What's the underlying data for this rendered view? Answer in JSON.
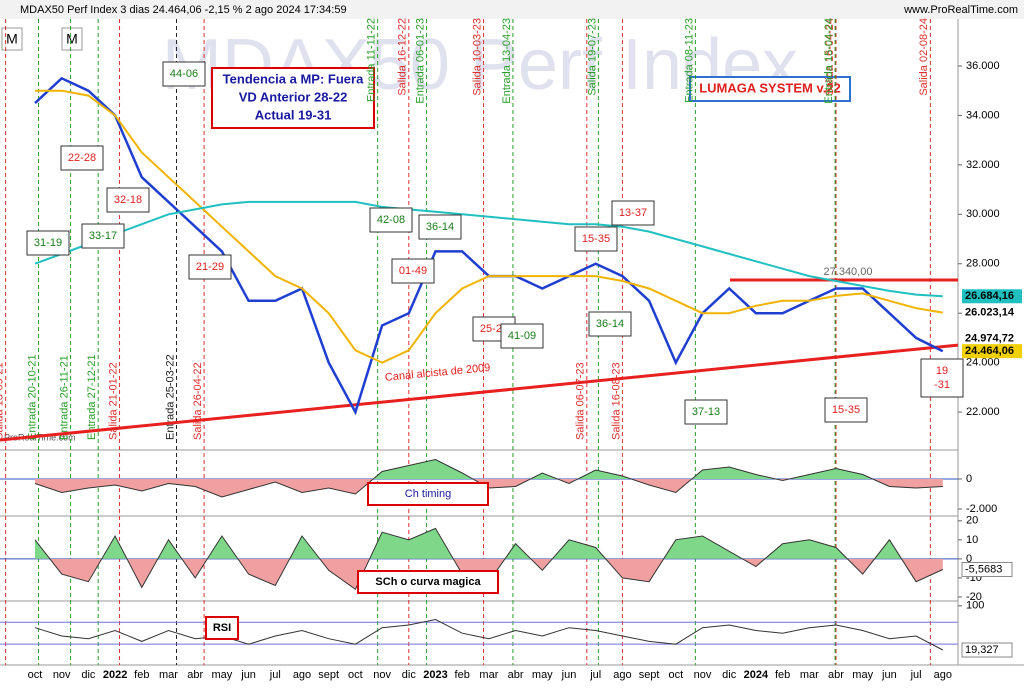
{
  "header": {
    "title": "MDAX50 Perf Index 3 dias 24.464,06 -2,15 % 2 ago 2024 17:34:59",
    "site": "www.ProRealTime.com",
    "watermark": "MDAX50 Perf Index",
    "credit": "ProRealTime.com",
    "buttons": [
      "M",
      "M"
    ]
  },
  "info_box": [
    "Tendencia a MP: Fuera",
    "VD Anterior 28-22",
    "Actual 19-31"
  ],
  "system_label": "LUMAGA SYSTEM v.22",
  "chart_data": [
    {
      "type": "line",
      "categories": [
        "oct",
        "nov",
        "dic",
        "2022",
        "feb",
        "mar",
        "abr",
        "may",
        "jun",
        "jul",
        "ago",
        "sept",
        "oct",
        "nov",
        "dic",
        "2023",
        "feb",
        "mar",
        "abr",
        "may",
        "jun",
        "jul",
        "ago",
        "sept",
        "oct",
        "nov",
        "dic",
        "2024",
        "feb",
        "mar",
        "abr",
        "may",
        "jun",
        "jul",
        "ago"
      ],
      "series": [
        {
          "color": "#1f3fd0",
          "values": [
            34500,
            35500,
            35000,
            34000,
            31500,
            30500,
            29500,
            28500,
            26500,
            26500,
            27000,
            24000,
            22000,
            25500,
            26000,
            28500,
            28500,
            27500,
            27500,
            27000,
            27500,
            28000,
            27500,
            26500,
            24000,
            26000,
            27000,
            26000,
            26000,
            26500,
            27000,
            27000,
            26000,
            25000,
            24464.06
          ]
        },
        {
          "color": "#f0b400",
          "values": [
            35000,
            35000,
            34800,
            34000,
            32500,
            31500,
            30500,
            29500,
            28500,
            27500,
            27000,
            26000,
            24500,
            24000,
            24500,
            26000,
            27000,
            27500,
            27500,
            27500,
            27500,
            27500,
            27300,
            27000,
            26500,
            26000,
            26000,
            26300,
            26500,
            26500,
            26700,
            26800,
            26500,
            26200,
            26023.14
          ]
        },
        {
          "color": "#20c0c0",
          "values": [
            28000,
            28400,
            28800,
            29200,
            29600,
            30000,
            30200,
            30400,
            30500,
            30500,
            30500,
            30500,
            30500,
            30300,
            30200,
            30100,
            30000,
            29900,
            29800,
            29700,
            29600,
            29600,
            29500,
            29300,
            29000,
            28700,
            28400,
            28100,
            27800,
            27500,
            27300,
            27100,
            26900,
            26750,
            26684.16
          ]
        }
      ],
      "ylim": [
        20870,
        37860
      ],
      "yticks": [
        {
          "value": 22000,
          "label": "22.000"
        },
        {
          "value": 24000,
          "label": "24.000"
        },
        {
          "value": 26000,
          "label": "26.000"
        },
        {
          "value": 28000,
          "label": "28.000"
        },
        {
          "value": 30000,
          "label": "30.000"
        },
        {
          "value": 32000,
          "label": "32.000"
        },
        {
          "value": 34000,
          "label": "34.000"
        },
        {
          "value": 36000,
          "label": "36.000"
        }
      ],
      "last_values": [
        {
          "value": 26684.16,
          "label": "26.684,16",
          "color": "#20c0c0"
        },
        {
          "value": 26023.14,
          "label": "26.023,14",
          "color": "#ffffff"
        },
        {
          "value": 24974.72,
          "label": "24.974,72",
          "color": "#ffffff"
        },
        {
          "value": 24464.06,
          "label": "24.464,06",
          "color": "#f0d000"
        }
      ],
      "trendlines": [
        {
          "label": "Canal alcista de 2009",
          "values": [
            20870,
            24710
          ],
          "color": "#e82020"
        },
        {
          "values": [
            27340,
            27340
          ],
          "value_label": "27.340,00",
          "color": "#e82020"
        }
      ],
      "events": [
        {
          "label": "Salida 13-09-21",
          "color": "#e03030"
        },
        {
          "label": "Entrada 20-10-21",
          "color": "#2a9d2a"
        },
        {
          "label": "Entrada 26-11-21",
          "color": "#2a9d2a"
        },
        {
          "label": "Entrada 27-12-21",
          "color": "#2a9d2a"
        },
        {
          "label": "Salida 21-01-22",
          "color": "#e03030"
        },
        {
          "label": "Entrada 25-03-22",
          "color": "#222222"
        },
        {
          "label": "Salida 26-04-22",
          "color": "#e03030"
        },
        {
          "label": "Entrada 11-11-22",
          "color": "#2a9d2a"
        },
        {
          "label": "Salida 16-12-22",
          "color": "#e03030"
        },
        {
          "label": "Entrada 06-01-23",
          "color": "#2a9d2a"
        },
        {
          "label": "Salida 10-03-23",
          "color": "#e03030"
        },
        {
          "label": "Entrada 13-04-23",
          "color": "#2a9d2a"
        },
        {
          "label": "Salida 06-07-23",
          "color": "#e03030"
        },
        {
          "label": "Salida 19-07-23",
          "color": "#2a9d2a"
        },
        {
          "label": "Salida 16-08-23",
          "color": "#e03030"
        },
        {
          "label": "Entrada 08-11-23",
          "color": "#2a9d2a"
        },
        {
          "label": "Salida 16-04-24",
          "color": "#e03030"
        },
        {
          "label": "Entrada 15-04-24",
          "color": "#2a9d2a"
        },
        {
          "label": "Salida 02-08-24",
          "color": "#e03030"
        }
      ],
      "boxes": [
        {
          "lines": [
            "44-06"
          ],
          "color": "#1a7a1a"
        },
        {
          "lines": [
            "22-28"
          ],
          "color": "#e02020"
        },
        {
          "lines": [
            "32-18"
          ],
          "color": "#e02020"
        },
        {
          "lines": [
            "31-19"
          ],
          "color": "#1a7a1a"
        },
        {
          "lines": [
            "33-17"
          ],
          "color": "#1a7a1a"
        },
        {
          "lines": [
            "21-29"
          ],
          "color": "#e02020"
        },
        {
          "lines": [
            "42-08"
          ],
          "color": "#1a7a1a"
        },
        {
          "lines": [
            "01-49"
          ],
          "color": "#e02020"
        },
        {
          "lines": [
            "36-14"
          ],
          "color": "#1a7a1a"
        },
        {
          "lines": [
            "25-25"
          ],
          "color": "#e02020"
        },
        {
          "lines": [
            "41-09"
          ],
          "color": "#1a7a1a"
        },
        {
          "lines": [
            "15-35"
          ],
          "color": "#e02020"
        },
        {
          "lines": [
            "13-37"
          ],
          "color": "#e02020"
        },
        {
          "lines": [
            "36-14"
          ],
          "color": "#1a7a1a"
        },
        {
          "lines": [
            "37-13"
          ],
          "color": "#1a7a1a"
        },
        {
          "lines": [
            "15-35"
          ],
          "color": "#e02020"
        },
        {
          "lines": [
            "19",
            "-31"
          ],
          "color": "#e02020"
        }
      ]
    },
    {
      "type": "area",
      "label": "Ch timing",
      "values": [
        -300,
        -900,
        -600,
        -400,
        -800,
        -300,
        -500,
        -1200,
        -700,
        -200,
        -900,
        -600,
        -1000,
        500,
        900,
        1300,
        400,
        -600,
        -500,
        400,
        -300,
        600,
        200,
        -400,
        -900,
        600,
        800,
        300,
        -100,
        300,
        700,
        300,
        -500,
        -600,
        -500
      ],
      "ylim": [
        -2400,
        1730
      ],
      "yticks": [
        0,
        {
          "value": -2000,
          "label": "-2.000"
        }
      ]
    },
    {
      "type": "area",
      "label": "SCh o curva magica",
      "values": [
        10,
        -8,
        -12,
        12,
        -15,
        10,
        -10,
        12,
        -8,
        -14,
        12,
        -6,
        -16,
        14,
        10,
        16,
        -8,
        -12,
        8,
        -6,
        10,
        6,
        -10,
        -12,
        10,
        12,
        4,
        -4,
        8,
        10,
        6,
        -8,
        10,
        -12,
        -5.5683
      ],
      "last": {
        "value": -5.5683,
        "label": "-5,5683"
      },
      "ylim": [
        -21.6,
        22
      ],
      "yticks": [
        -20,
        -10,
        0,
        10,
        20
      ]
    },
    {
      "type": "line",
      "label": "RSI",
      "values": [
        60,
        45,
        40,
        55,
        35,
        55,
        40,
        45,
        30,
        45,
        55,
        40,
        30,
        60,
        65,
        75,
        50,
        40,
        55,
        45,
        60,
        55,
        45,
        35,
        30,
        60,
        65,
        55,
        50,
        60,
        65,
        55,
        40,
        45,
        19.327
      ],
      "last": {
        "value": 19.327,
        "label": "19,327"
      },
      "ylim": [
        -8,
        107
      ],
      "yticks": [
        100
      ],
      "levels": [
        70,
        30
      ]
    }
  ]
}
